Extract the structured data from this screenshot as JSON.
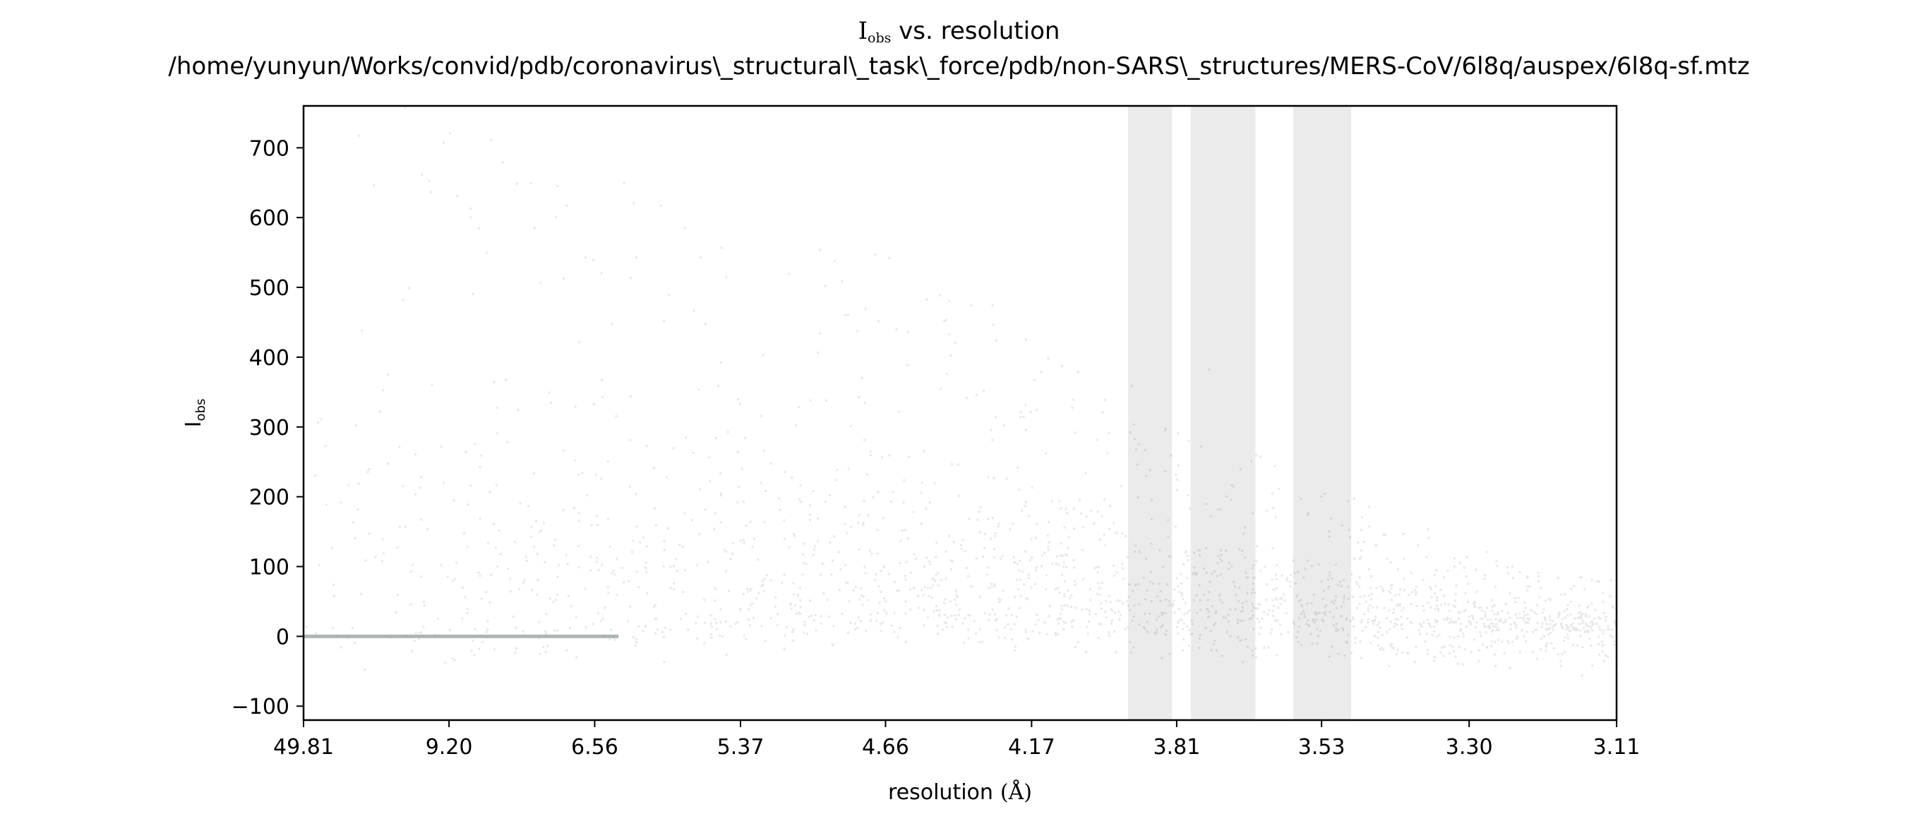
{
  "chart_data": {
    "type": "scatter",
    "title": {
      "symbol": "I",
      "subscript": "obs",
      "rest": " vs. resolution",
      "path": "/home/yunyun/Works/convid/pdb/coronavirus\\_structural\\_task\\_force/pdb/non-SARS\\_structures/MERS-CoV/6l8q/auspex/6l8q-sf.mtz"
    },
    "xlabel": {
      "text": "resolution",
      "unit": "(Å)"
    },
    "ylabel": {
      "symbol": "I",
      "subscript": "obs"
    },
    "x_scale": "inverse-square resolution (1/d²), labelled in Å",
    "x_tick_labels": [
      "49.81",
      "9.20",
      "6.56",
      "5.37",
      "4.66",
      "4.17",
      "3.81",
      "3.53",
      "3.30",
      "3.11"
    ],
    "x_range_resolution_A": [
      49.81,
      3.11
    ],
    "y_ticks": [
      -100,
      0,
      100,
      200,
      300,
      400,
      500,
      600,
      700
    ],
    "y_tick_labels": [
      "−100",
      "0",
      "100",
      "200",
      "300",
      "400",
      "500",
      "600",
      "700"
    ],
    "ylim": [
      -120,
      760
    ],
    "ice_ring_bands_resolution_A": [
      [
        3.92,
        3.82
      ],
      [
        3.78,
        3.65
      ],
      [
        3.58,
        3.48
      ]
    ],
    "density_profile": [
      {
        "resolution_A": 49.81,
        "median_I": 2,
        "upper_I": 720
      },
      {
        "resolution_A": 9.2,
        "median_I": 5,
        "upper_I": 700
      },
      {
        "resolution_A": 6.56,
        "median_I": 30,
        "upper_I": 600
      },
      {
        "resolution_A": 5.37,
        "median_I": 35,
        "upper_I": 550
      },
      {
        "resolution_A": 4.66,
        "median_I": 35,
        "upper_I": 500
      },
      {
        "resolution_A": 4.17,
        "median_I": 30,
        "upper_I": 400
      },
      {
        "resolution_A": 3.81,
        "median_I": 25,
        "upper_I": 300
      },
      {
        "resolution_A": 3.53,
        "median_I": 20,
        "upper_I": 200
      },
      {
        "resolution_A": 3.3,
        "median_I": 12,
        "upper_I": 120
      },
      {
        "resolution_A": 3.11,
        "median_I": 8,
        "upper_I": 70
      }
    ],
    "grid": false,
    "legend": "none",
    "colors": {
      "points": "#000000",
      "ice_ring_bands": "#ebebeb",
      "zero_line": "#889a96"
    }
  }
}
